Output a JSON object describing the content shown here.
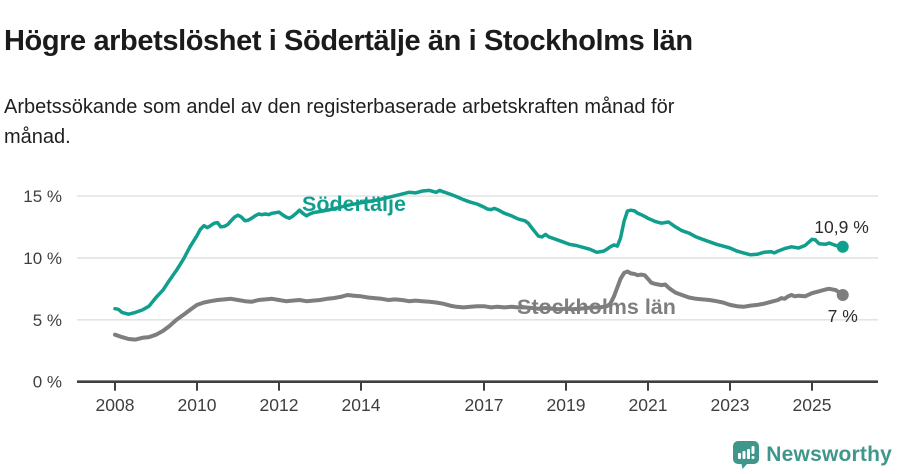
{
  "header": {
    "title": "Högre arbetslöshet i Södertälje än i Stockholms län",
    "subtitle_line1": "Arbetssökande som andel av den registerbaserade arbetskraften månad för",
    "subtitle_line2": "månad."
  },
  "chart_data": {
    "type": "line",
    "unit": "percent of registered labour force",
    "x_axis": {
      "ticks": [
        2008,
        2010,
        2012,
        2014,
        2017,
        2019,
        2021,
        2023,
        2025
      ]
    },
    "y_axis": {
      "ticks": [
        0,
        5,
        10,
        15
      ],
      "tick_suffix": " %",
      "range": [
        0,
        16
      ]
    },
    "grid": "horizontal",
    "series": [
      {
        "name": "Södertälje",
        "color": "#109e8d",
        "end_label": "10,9 %",
        "end_value": 10.9,
        "points": [
          [
            2008.0,
            5.9
          ],
          [
            2008.08,
            5.85
          ],
          [
            2008.17,
            5.6
          ],
          [
            2008.33,
            5.45
          ],
          [
            2008.5,
            5.6
          ],
          [
            2008.67,
            5.8
          ],
          [
            2008.83,
            6.1
          ],
          [
            2009.0,
            6.8
          ],
          [
            2009.17,
            7.4
          ],
          [
            2009.33,
            8.2
          ],
          [
            2009.5,
            9.0
          ],
          [
            2009.67,
            9.9
          ],
          [
            2009.83,
            10.9
          ],
          [
            2010.0,
            11.8
          ],
          [
            2010.08,
            12.3
          ],
          [
            2010.17,
            12.6
          ],
          [
            2010.25,
            12.45
          ],
          [
            2010.33,
            12.6
          ],
          [
            2010.42,
            12.8
          ],
          [
            2010.5,
            12.85
          ],
          [
            2010.58,
            12.5
          ],
          [
            2010.67,
            12.55
          ],
          [
            2010.75,
            12.7
          ],
          [
            2010.83,
            13.0
          ],
          [
            2010.92,
            13.3
          ],
          [
            2011.0,
            13.45
          ],
          [
            2011.08,
            13.3
          ],
          [
            2011.17,
            13.0
          ],
          [
            2011.25,
            13.05
          ],
          [
            2011.33,
            13.2
          ],
          [
            2011.42,
            13.4
          ],
          [
            2011.5,
            13.55
          ],
          [
            2011.58,
            13.5
          ],
          [
            2011.67,
            13.55
          ],
          [
            2011.75,
            13.5
          ],
          [
            2011.83,
            13.6
          ],
          [
            2011.92,
            13.65
          ],
          [
            2012.0,
            13.7
          ],
          [
            2012.08,
            13.5
          ],
          [
            2012.17,
            13.3
          ],
          [
            2012.25,
            13.2
          ],
          [
            2012.33,
            13.35
          ],
          [
            2012.42,
            13.6
          ],
          [
            2012.5,
            13.85
          ],
          [
            2012.58,
            13.6
          ],
          [
            2012.67,
            13.4
          ],
          [
            2012.75,
            13.55
          ],
          [
            2012.83,
            13.65
          ],
          [
            2013.0,
            13.75
          ],
          [
            2013.25,
            13.9
          ],
          [
            2013.5,
            14.1
          ],
          [
            2013.75,
            14.3
          ],
          [
            2014.0,
            14.45
          ],
          [
            2014.25,
            14.6
          ],
          [
            2014.5,
            14.75
          ],
          [
            2014.75,
            14.95
          ],
          [
            2015.0,
            15.15
          ],
          [
            2015.17,
            15.3
          ],
          [
            2015.33,
            15.25
          ],
          [
            2015.5,
            15.4
          ],
          [
            2015.67,
            15.45
          ],
          [
            2015.83,
            15.3
          ],
          [
            2015.92,
            15.45
          ],
          [
            2016.0,
            15.35
          ],
          [
            2016.17,
            15.15
          ],
          [
            2016.33,
            14.95
          ],
          [
            2016.5,
            14.7
          ],
          [
            2016.67,
            14.5
          ],
          [
            2016.83,
            14.35
          ],
          [
            2017.0,
            14.1
          ],
          [
            2017.08,
            13.95
          ],
          [
            2017.17,
            13.9
          ],
          [
            2017.25,
            14.0
          ],
          [
            2017.33,
            13.9
          ],
          [
            2017.5,
            13.6
          ],
          [
            2017.67,
            13.4
          ],
          [
            2017.83,
            13.15
          ],
          [
            2018.0,
            13.0
          ],
          [
            2018.08,
            12.8
          ],
          [
            2018.17,
            12.4
          ],
          [
            2018.33,
            11.75
          ],
          [
            2018.42,
            11.7
          ],
          [
            2018.5,
            11.9
          ],
          [
            2018.58,
            11.7
          ],
          [
            2018.75,
            11.5
          ],
          [
            2018.92,
            11.3
          ],
          [
            2019.08,
            11.1
          ],
          [
            2019.25,
            11.0
          ],
          [
            2019.42,
            10.85
          ],
          [
            2019.58,
            10.7
          ],
          [
            2019.75,
            10.45
          ],
          [
            2019.92,
            10.55
          ],
          [
            2020.0,
            10.7
          ],
          [
            2020.08,
            10.9
          ],
          [
            2020.17,
            11.05
          ],
          [
            2020.25,
            10.95
          ],
          [
            2020.33,
            11.6
          ],
          [
            2020.42,
            13.0
          ],
          [
            2020.5,
            13.8
          ],
          [
            2020.58,
            13.85
          ],
          [
            2020.67,
            13.8
          ],
          [
            2020.75,
            13.6
          ],
          [
            2020.83,
            13.5
          ],
          [
            2020.92,
            13.35
          ],
          [
            2021.0,
            13.2
          ],
          [
            2021.17,
            12.95
          ],
          [
            2021.33,
            12.8
          ],
          [
            2021.5,
            12.9
          ],
          [
            2021.67,
            12.5
          ],
          [
            2021.83,
            12.2
          ],
          [
            2022.0,
            12.0
          ],
          [
            2022.17,
            11.7
          ],
          [
            2022.33,
            11.5
          ],
          [
            2022.5,
            11.3
          ],
          [
            2022.67,
            11.1
          ],
          [
            2022.83,
            10.95
          ],
          [
            2023.0,
            10.8
          ],
          [
            2023.17,
            10.55
          ],
          [
            2023.33,
            10.4
          ],
          [
            2023.5,
            10.25
          ],
          [
            2023.67,
            10.3
          ],
          [
            2023.83,
            10.45
          ],
          [
            2024.0,
            10.5
          ],
          [
            2024.08,
            10.4
          ],
          [
            2024.17,
            10.55
          ],
          [
            2024.33,
            10.75
          ],
          [
            2024.5,
            10.9
          ],
          [
            2024.67,
            10.8
          ],
          [
            2024.83,
            11.0
          ],
          [
            2025.0,
            11.5
          ],
          [
            2025.08,
            11.45
          ],
          [
            2025.17,
            11.15
          ],
          [
            2025.33,
            11.1
          ],
          [
            2025.42,
            11.2
          ],
          [
            2025.58,
            11.0
          ],
          [
            2025.75,
            10.9
          ]
        ]
      },
      {
        "name": "Stockholms län",
        "color": "#7e7e7e",
        "end_label": "7 %",
        "end_value": 7.0,
        "points": [
          [
            2008.0,
            3.8
          ],
          [
            2008.17,
            3.6
          ],
          [
            2008.33,
            3.45
          ],
          [
            2008.5,
            3.4
          ],
          [
            2008.67,
            3.55
          ],
          [
            2008.83,
            3.6
          ],
          [
            2009.0,
            3.8
          ],
          [
            2009.17,
            4.1
          ],
          [
            2009.33,
            4.5
          ],
          [
            2009.5,
            5.0
          ],
          [
            2009.67,
            5.4
          ],
          [
            2009.83,
            5.8
          ],
          [
            2010.0,
            6.2
          ],
          [
            2010.17,
            6.4
          ],
          [
            2010.33,
            6.5
          ],
          [
            2010.5,
            6.6
          ],
          [
            2010.67,
            6.65
          ],
          [
            2010.83,
            6.7
          ],
          [
            2011.0,
            6.6
          ],
          [
            2011.17,
            6.5
          ],
          [
            2011.33,
            6.45
          ],
          [
            2011.5,
            6.6
          ],
          [
            2011.67,
            6.65
          ],
          [
            2011.83,
            6.7
          ],
          [
            2012.0,
            6.6
          ],
          [
            2012.17,
            6.5
          ],
          [
            2012.33,
            6.55
          ],
          [
            2012.5,
            6.6
          ],
          [
            2012.67,
            6.5
          ],
          [
            2012.83,
            6.55
          ],
          [
            2013.0,
            6.6
          ],
          [
            2013.17,
            6.7
          ],
          [
            2013.33,
            6.75
          ],
          [
            2013.5,
            6.85
          ],
          [
            2013.67,
            7.0
          ],
          [
            2013.83,
            6.95
          ],
          [
            2014.0,
            6.9
          ],
          [
            2014.17,
            6.8
          ],
          [
            2014.33,
            6.75
          ],
          [
            2014.5,
            6.7
          ],
          [
            2014.67,
            6.6
          ],
          [
            2014.83,
            6.65
          ],
          [
            2015.0,
            6.6
          ],
          [
            2015.17,
            6.5
          ],
          [
            2015.33,
            6.55
          ],
          [
            2015.5,
            6.5
          ],
          [
            2015.67,
            6.45
          ],
          [
            2015.83,
            6.4
          ],
          [
            2016.0,
            6.3
          ],
          [
            2016.17,
            6.15
          ],
          [
            2016.33,
            6.05
          ],
          [
            2016.5,
            6.0
          ],
          [
            2016.67,
            6.05
          ],
          [
            2016.83,
            6.1
          ],
          [
            2017.0,
            6.1
          ],
          [
            2017.17,
            6.0
          ],
          [
            2017.33,
            6.05
          ],
          [
            2017.5,
            6.0
          ],
          [
            2017.67,
            6.05
          ],
          [
            2017.83,
            6.0
          ],
          [
            2018.0,
            6.0
          ],
          [
            2018.17,
            5.95
          ],
          [
            2018.33,
            5.9
          ],
          [
            2018.5,
            5.95
          ],
          [
            2018.67,
            5.9
          ],
          [
            2018.83,
            5.85
          ],
          [
            2019.0,
            5.9
          ],
          [
            2019.17,
            5.85
          ],
          [
            2019.33,
            5.9
          ],
          [
            2019.5,
            5.95
          ],
          [
            2019.67,
            6.0
          ],
          [
            2019.83,
            6.0
          ],
          [
            2020.0,
            6.1
          ],
          [
            2020.08,
            6.3
          ],
          [
            2020.17,
            6.9
          ],
          [
            2020.25,
            7.6
          ],
          [
            2020.33,
            8.3
          ],
          [
            2020.42,
            8.8
          ],
          [
            2020.5,
            8.9
          ],
          [
            2020.58,
            8.75
          ],
          [
            2020.67,
            8.7
          ],
          [
            2020.75,
            8.6
          ],
          [
            2020.83,
            8.65
          ],
          [
            2020.92,
            8.6
          ],
          [
            2021.0,
            8.3
          ],
          [
            2021.08,
            8.0
          ],
          [
            2021.17,
            7.9
          ],
          [
            2021.25,
            7.85
          ],
          [
            2021.33,
            7.8
          ],
          [
            2021.42,
            7.85
          ],
          [
            2021.5,
            7.6
          ],
          [
            2021.58,
            7.4
          ],
          [
            2021.67,
            7.2
          ],
          [
            2021.83,
            7.0
          ],
          [
            2022.0,
            6.8
          ],
          [
            2022.17,
            6.7
          ],
          [
            2022.33,
            6.65
          ],
          [
            2022.5,
            6.6
          ],
          [
            2022.67,
            6.5
          ],
          [
            2022.83,
            6.4
          ],
          [
            2023.0,
            6.2
          ],
          [
            2023.17,
            6.1
          ],
          [
            2023.33,
            6.05
          ],
          [
            2023.5,
            6.15
          ],
          [
            2023.67,
            6.2
          ],
          [
            2023.83,
            6.3
          ],
          [
            2024.0,
            6.45
          ],
          [
            2024.17,
            6.6
          ],
          [
            2024.25,
            6.75
          ],
          [
            2024.33,
            6.7
          ],
          [
            2024.42,
            6.9
          ],
          [
            2024.5,
            7.0
          ],
          [
            2024.58,
            6.9
          ],
          [
            2024.67,
            6.95
          ],
          [
            2024.83,
            6.9
          ],
          [
            2025.0,
            7.15
          ],
          [
            2025.17,
            7.3
          ],
          [
            2025.33,
            7.45
          ],
          [
            2025.42,
            7.5
          ],
          [
            2025.58,
            7.4
          ],
          [
            2025.75,
            7.0
          ]
        ]
      }
    ]
  },
  "branding": {
    "logo_text": "Newsworthy",
    "logo_color": "#3f968b"
  },
  "colors": {
    "accent_teal": "#109e8d",
    "line_gray": "#7e7e7e",
    "grid": "#e3e3e3",
    "axis": "#404040",
    "tick_text": "#3f3f3f",
    "value_label_text": "#2b2b2b"
  }
}
